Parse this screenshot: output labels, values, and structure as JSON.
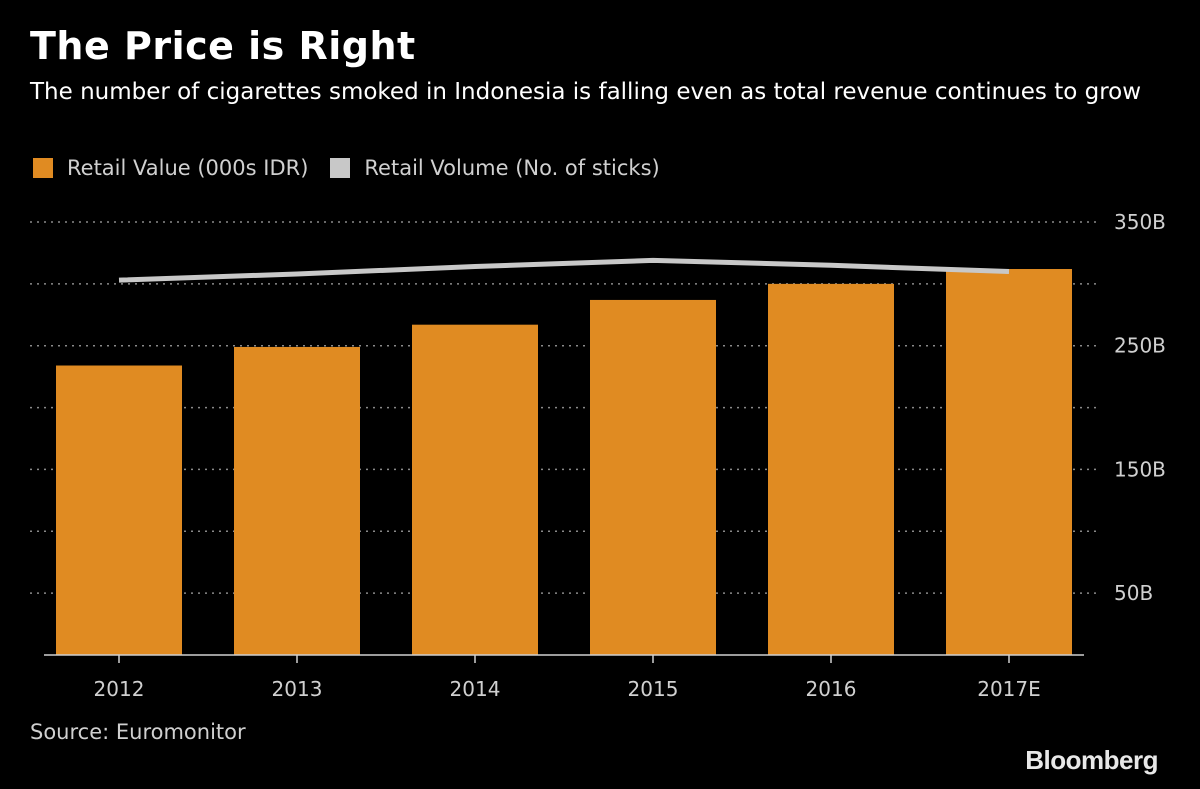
{
  "header": {
    "title": "The Price is Right",
    "subtitle": "The number of cigarettes smoked in Indonesia is falling even as total revenue continues to grow"
  },
  "legend": {
    "items": [
      {
        "label": "Retail Value (000s IDR)",
        "color": "#e08b22"
      },
      {
        "label": "Retail Volume (No. of sticks)",
        "color": "#c8c8c8"
      }
    ]
  },
  "footer": {
    "source": "Source: Euromonitor",
    "brand": "Bloomberg"
  },
  "chart_data": {
    "type": "bar",
    "title": "The Price is Right",
    "subtitle": "The number of cigarettes smoked in Indonesia is falling even as total revenue continues to grow",
    "categories": [
      "2012",
      "2013",
      "2014",
      "2015",
      "2016",
      "2017E"
    ],
    "series": [
      {
        "name": "Retail Value (000s IDR)",
        "type": "bar",
        "color": "#e08b22",
        "values": [
          234,
          249,
          267,
          287,
          300,
          312
        ]
      },
      {
        "name": "Retail Volume (No. of sticks)",
        "type": "line",
        "color": "#c8c8c8",
        "values": [
          303,
          308,
          314,
          319,
          315,
          310
        ]
      }
    ],
    "value_unit": "B",
    "y_axis": {
      "position": "right",
      "ticks": [
        "350B",
        "250B",
        "150B",
        "50B"
      ],
      "tick_values": [
        350,
        250,
        150,
        50
      ],
      "range": [
        0,
        350
      ]
    },
    "grid": true,
    "grid_values": [
      350,
      300,
      250,
      200,
      150,
      100,
      50
    ],
    "legend_position": "top-left",
    "xlabel": "",
    "ylabel": ""
  }
}
